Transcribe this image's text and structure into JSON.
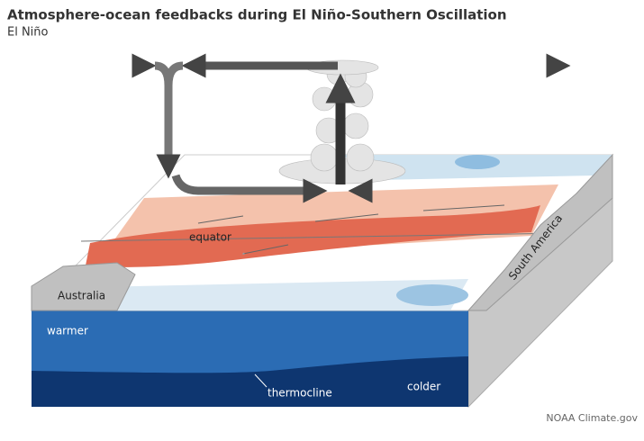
{
  "header": {
    "title": "Atmosphere-ocean feedbacks during El Niño-Southern Oscillation",
    "subtitle": "El Niño"
  },
  "labels": {
    "equator": "equator",
    "australia": "Australia",
    "south_america": "South America",
    "warmer": "warmer",
    "thermocline": "thermocline",
    "colder": "colder"
  },
  "credit": "NOAA Climate.gov"
}
